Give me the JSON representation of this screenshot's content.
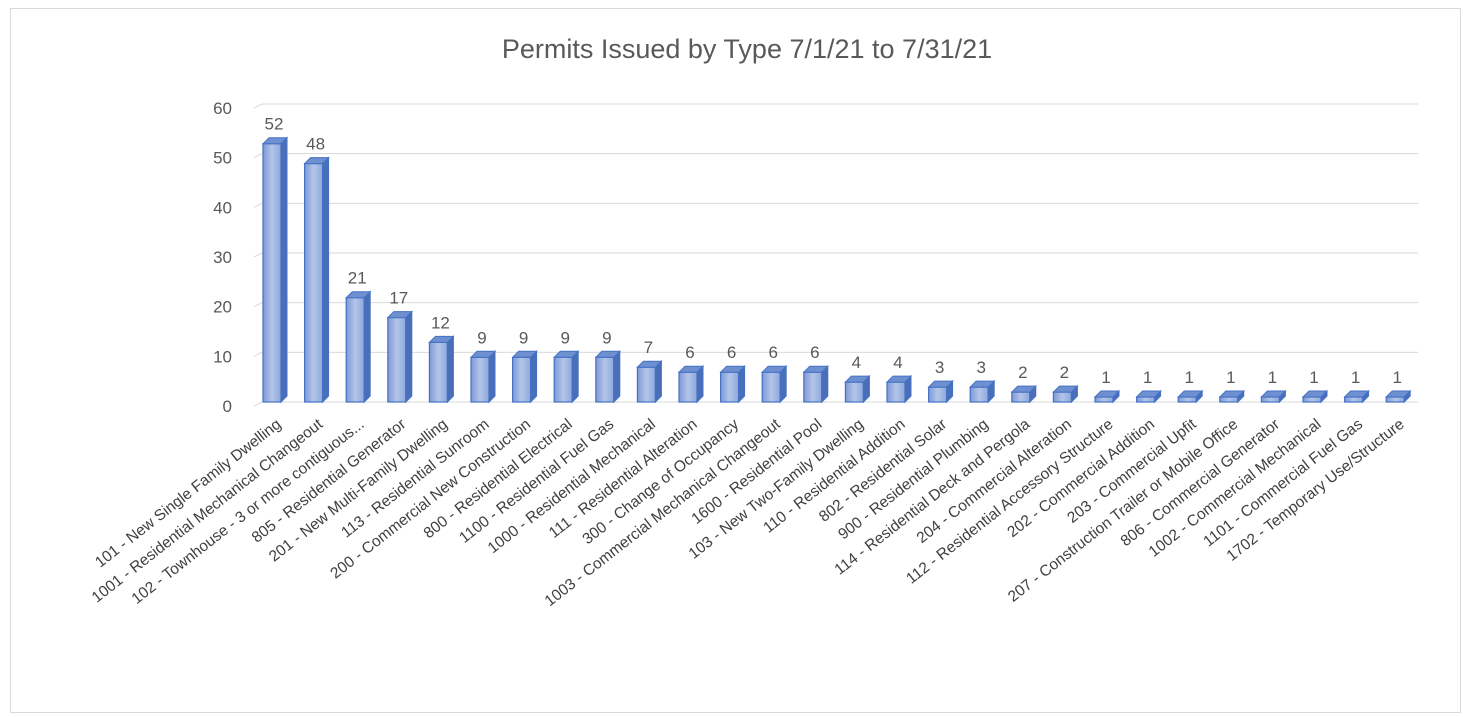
{
  "chart_data": {
    "type": "bar",
    "title": "Permits Issued by Type 7/1/21 to 7/31/21",
    "xlabel": "",
    "ylabel": "",
    "ylim": [
      0,
      60
    ],
    "yticks": [
      0,
      10,
      20,
      30,
      40,
      50,
      60
    ],
    "grid": true,
    "legend": "none",
    "bar_color": "#8FA8DC",
    "bar_edge_color": "#4472C4",
    "categories": [
      "101 - New Single Family Dwelling",
      "1001 - Residential Mechanical Changeout",
      "102 - Townhouse - 3 or more contiguous...",
      "805 - Residential Generator",
      "201 - New Multi-Family Dwelling",
      "113 - Residential Sunroom",
      "200 - Commercial New Construction",
      "800 - Residential Electrical",
      "1100 - Residential Fuel Gas",
      "1000 - Residential Mechanical",
      "111 - Residential Alteration",
      "300 - Change of Occupancy",
      "1003 - Commercial Mechanical Changeout",
      "1600 - Residential Pool",
      "103 - New Two-Family Dwelling",
      "110 - Residential Addition",
      "802 - Residential Solar",
      "900 - Residential Plumbing",
      "114 - Residential Deck and Pergola",
      "204 - Commercial Alteration",
      "112 - Residential Accessory Structure",
      "202 - Commercial Addition",
      "203 - Commercial Upfit",
      "207 - Construction Trailer or Mobile Office",
      "806 - Commercial Generator",
      "1002 - Commercial Mechanical",
      "1101 - Commercial Fuel Gas",
      "1702 - Temporary Use/Structure"
    ],
    "values": [
      52,
      48,
      21,
      17,
      12,
      9,
      9,
      9,
      9,
      7,
      6,
      6,
      6,
      6,
      4,
      4,
      3,
      3,
      2,
      2,
      1,
      1,
      1,
      1,
      1,
      1,
      1,
      1
    ]
  }
}
